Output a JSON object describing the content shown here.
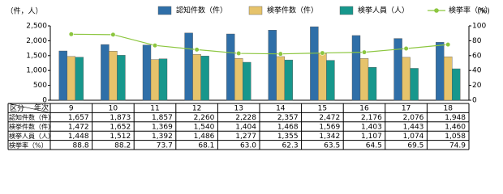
{
  "chart_data": {
    "type": "bar",
    "y_label": "（件，人）",
    "y2_label": "(%)",
    "row_header_label": "区分",
    "column_header_label": "年次",
    "categories": [
      "9",
      "10",
      "11",
      "12",
      "13",
      "14",
      "15",
      "16",
      "17",
      "18"
    ],
    "series": [
      {
        "name": "認知件数（件）",
        "color": "#2f6fa8",
        "values": [
          1657,
          1873,
          1857,
          2260,
          2228,
          2357,
          2472,
          2176,
          2076,
          1948
        ],
        "value_labels": [
          "1,657",
          "1,873",
          "1,857",
          "2,260",
          "2,228",
          "2,357",
          "2,472",
          "2,176",
          "2,076",
          "1,948"
        ]
      },
      {
        "name": "検挙件数（件）",
        "color": "#e6c36b",
        "values": [
          1472,
          1652,
          1369,
          1540,
          1404,
          1468,
          1569,
          1403,
          1443,
          1460
        ],
        "value_labels": [
          "1,472",
          "1,652",
          "1,369",
          "1,540",
          "1,404",
          "1,468",
          "1,569",
          "1,403",
          "1,443",
          "1,460"
        ]
      },
      {
        "name": "検挙人員（人）",
        "color": "#17978c",
        "values": [
          1448,
          1512,
          1392,
          1486,
          1277,
          1355,
          1342,
          1107,
          1074,
          1058
        ],
        "value_labels": [
          "1,448",
          "1,512",
          "1,392",
          "1,486",
          "1,277",
          "1,355",
          "1,342",
          "1,107",
          "1,074",
          "1,058"
        ]
      },
      {
        "name": "検挙率（%）",
        "color": "#8cc63f",
        "type": "line",
        "axis": "y2",
        "values": [
          88.8,
          88.2,
          73.7,
          68.1,
          63.0,
          62.3,
          63.5,
          64.5,
          69.5,
          74.9
        ],
        "value_labels": [
          "88.8",
          "88.2",
          "73.7",
          "68.1",
          "63.0",
          "62.3",
          "63.5",
          "64.5",
          "69.5",
          "74.9"
        ]
      }
    ],
    "ylim": [
      0,
      2500
    ],
    "yticks": [
      0,
      500,
      {
        "value": 1000,
        "label": "1,000"
      },
      {
        "value": 1500,
        "label": "1,500"
      },
      {
        "value": 2000,
        "label": "2,000"
      },
      {
        "value": 2500,
        "label": "2,500"
      }
    ],
    "y2lim": [
      0,
      100
    ],
    "y2ticks": [
      0,
      20,
      40,
      60,
      80,
      100
    ],
    "grid": false
  }
}
